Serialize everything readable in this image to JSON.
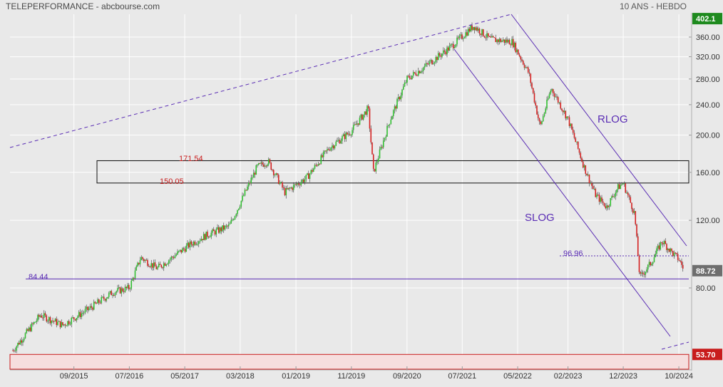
{
  "header": {
    "title": "TELEPERFORMANCE - abcbourse.com",
    "period": "10 ANS - HEBDO"
  },
  "chart_data": {
    "type": "candlestick",
    "title": "TELEPERFORMANCE - abcbourse.com",
    "subtitle": "10 ANS - HEBDO",
    "scale": "log",
    "grid": true,
    "ylim": [
      52,
      410
    ],
    "x_ticks": [
      "09/2015",
      "07/2016",
      "05/2017",
      "03/2018",
      "01/2019",
      "11/2019",
      "09/2020",
      "07/2021",
      "05/2022",
      "02/2023",
      "12/2023",
      "10/2024"
    ],
    "y_ticks": [
      80,
      120,
      160,
      200,
      240,
      280,
      320,
      360
    ],
    "y_tick_labels": [
      "80.00",
      "120.00",
      "160.00",
      "200.00",
      "240.00",
      "280.00",
      "320.00",
      "360.00"
    ],
    "price_path": [
      [
        "2014-10",
        55
      ],
      [
        "2015-03",
        68
      ],
      [
        "2015-07",
        64
      ],
      [
        "2015-12",
        71
      ],
      [
        "2016-04",
        78
      ],
      [
        "2016-07",
        80
      ],
      [
        "2016-09",
        96
      ],
      [
        "2016-12",
        90
      ],
      [
        "2017-06",
        104
      ],
      [
        "2017-09",
        110
      ],
      [
        "2018-01",
        116
      ],
      [
        "2018-06",
        165
      ],
      [
        "2018-08",
        171
      ],
      [
        "2018-11",
        142
      ],
      [
        "2019-03",
        155
      ],
      [
        "2019-07",
        185
      ],
      [
        "2019-11",
        205
      ],
      [
        "2020-02",
        235
      ],
      [
        "2020-03",
        160
      ],
      [
        "2020-06",
        220
      ],
      [
        "2020-09",
        280
      ],
      [
        "2020-12",
        300
      ],
      [
        "2021-05",
        340
      ],
      [
        "2021-09",
        385
      ],
      [
        "2021-12",
        355
      ],
      [
        "2022-04",
        350
      ],
      [
        "2022-07",
        290
      ],
      [
        "2022-09",
        210
      ],
      [
        "2022-11",
        265
      ],
      [
        "2023-02",
        220
      ],
      [
        "2023-05",
        165
      ],
      [
        "2023-07",
        140
      ],
      [
        "2023-09",
        130
      ],
      [
        "2023-11",
        146
      ],
      [
        "2023-12",
        150
      ],
      [
        "2024-02",
        125
      ],
      [
        "2024-03",
        85
      ],
      [
        "2024-05",
        93
      ],
      [
        "2024-07",
        106
      ],
      [
        "2024-09",
        98
      ],
      [
        "2024-10",
        95
      ],
      [
        "2024-11",
        88.72
      ]
    ],
    "annotations": {
      "support": {
        "label": "84.44",
        "value": 84.44
      },
      "box_top": {
        "label": "171.54",
        "value": 171.54
      },
      "box_bottom": {
        "label": "150.05",
        "value": 150.05
      },
      "resistance": {
        "label": "96.96",
        "value": 96.96
      },
      "rlog": "RLOG",
      "slog": "SLOG"
    },
    "price_tags": [
      {
        "label": "402.1",
        "value": 402.1,
        "color": "#1e8a1e"
      },
      {
        "label": "88.72",
        "value": 88.72,
        "color": "#6e6e6e"
      },
      {
        "label": "53.70",
        "value": 53.7,
        "color": "#c81c1c"
      }
    ]
  },
  "colors": {
    "up": "#30c030",
    "down": "#d42020",
    "channel": "#5a2db4",
    "support": "#5a2db4",
    "label_red": "#c81c1c",
    "grid": "#ffffff"
  }
}
